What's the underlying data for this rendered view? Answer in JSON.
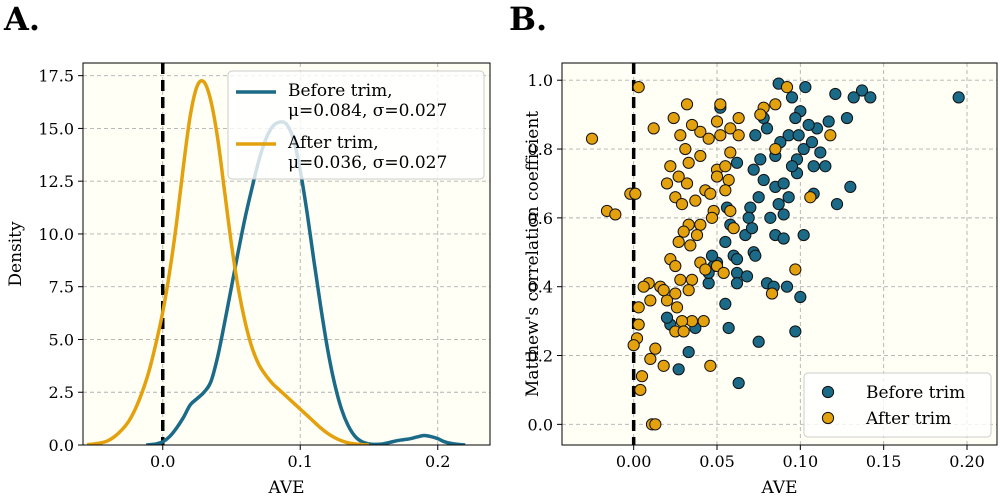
{
  "figure": {
    "background": "#ffffff",
    "plot_background": "#fffff6",
    "grid_color": "#b0b0b0",
    "colors": {
      "before": "#1b6a87",
      "after": "#e4a10e"
    }
  },
  "chart_data": [
    {
      "type": "line",
      "panel_label": "A.",
      "xlabel": "AVE",
      "ylabel": "Density",
      "xlim": [
        -0.058,
        0.238
      ],
      "ylim": [
        0,
        18.1
      ],
      "grid": true,
      "x_ticks": [
        0.0,
        0.1,
        0.2
      ],
      "x_tick_labels": [
        "0.0",
        "0.1",
        "0.2"
      ],
      "y_ticks": [
        0,
        2.5,
        5,
        7.5,
        10,
        12.5,
        15,
        17.5
      ],
      "y_tick_labels": [
        "0.0",
        "2.5",
        "5.0",
        "7.5",
        "10.0",
        "12.5",
        "15.0",
        "17.5"
      ],
      "reference_line": {
        "x": 0,
        "style": "dashed",
        "color": "#000000"
      },
      "legend": {
        "position": "top-right",
        "entries": [
          {
            "line1": "Before trim,",
            "line2": "μ=0.084, σ=0.027"
          },
          {
            "line1": "After trim,",
            "line2": "μ=0.036, σ=0.027"
          }
        ]
      },
      "series": [
        {
          "key": "before",
          "x": [
            -0.012,
            -0.005,
            0.0,
            0.005,
            0.01,
            0.015,
            0.02,
            0.025,
            0.03,
            0.035,
            0.04,
            0.045,
            0.05,
            0.055,
            0.06,
            0.065,
            0.07,
            0.075,
            0.08,
            0.085,
            0.09,
            0.095,
            0.1,
            0.105,
            0.11,
            0.115,
            0.12,
            0.125,
            0.13,
            0.135,
            0.14,
            0.145,
            0.15,
            0.155,
            0.16,
            0.165,
            0.17,
            0.175,
            0.18,
            0.185,
            0.19,
            0.195,
            0.2,
            0.205,
            0.21,
            0.215,
            0.22
          ],
          "y": [
            0.0,
            0.05,
            0.15,
            0.4,
            0.8,
            1.3,
            1.9,
            2.2,
            2.5,
            3.0,
            4.2,
            5.8,
            7.5,
            9.2,
            10.8,
            12.2,
            13.5,
            14.5,
            15.1,
            15.3,
            15.2,
            14.5,
            13.0,
            11.0,
            8.7,
            6.5,
            4.5,
            2.9,
            1.7,
            0.9,
            0.4,
            0.15,
            0.05,
            0.03,
            0.05,
            0.12,
            0.2,
            0.25,
            0.3,
            0.38,
            0.45,
            0.4,
            0.3,
            0.15,
            0.07,
            0.03,
            0.0
          ]
        },
        {
          "key": "after",
          "x": [
            -0.055,
            -0.05,
            -0.045,
            -0.04,
            -0.035,
            -0.03,
            -0.025,
            -0.02,
            -0.015,
            -0.01,
            -0.005,
            0.0,
            0.005,
            0.01,
            0.015,
            0.02,
            0.025,
            0.03,
            0.035,
            0.04,
            0.045,
            0.05,
            0.055,
            0.06,
            0.065,
            0.07,
            0.075,
            0.08,
            0.085,
            0.09,
            0.095,
            0.1,
            0.105,
            0.11,
            0.115,
            0.12,
            0.125,
            0.13,
            0.135,
            0.14,
            0.145,
            0.15
          ],
          "y": [
            0.02,
            0.05,
            0.1,
            0.2,
            0.4,
            0.7,
            1.1,
            1.7,
            2.5,
            3.5,
            4.8,
            6.3,
            8.2,
            10.5,
            13.2,
            15.6,
            17.0,
            17.2,
            16.3,
            14.5,
            12.0,
            9.5,
            7.4,
            5.8,
            4.6,
            3.8,
            3.3,
            2.9,
            2.6,
            2.3,
            2.0,
            1.7,
            1.4,
            1.1,
            0.8,
            0.55,
            0.35,
            0.2,
            0.1,
            0.05,
            0.02,
            0.0
          ]
        }
      ]
    },
    {
      "type": "scatter",
      "panel_label": "B.",
      "xlabel": "AVE",
      "ylabel": "Matthew's correlation coefficient",
      "xlim": [
        -0.043,
        0.218
      ],
      "ylim": [
        -0.06,
        1.05
      ],
      "grid": true,
      "x_ticks": [
        0.0,
        0.05,
        0.1,
        0.15,
        0.2
      ],
      "x_tick_labels": [
        "0.00",
        "0.05",
        "0.10",
        "0.15",
        "0.20"
      ],
      "y_ticks": [
        0.0,
        0.2,
        0.4,
        0.6,
        0.8,
        1.0
      ],
      "y_tick_labels": [
        "0.0",
        "0.2",
        "0.4",
        "0.6",
        "0.8",
        "1.0"
      ],
      "reference_line": {
        "x": 0,
        "style": "dashed",
        "color": "#000000"
      },
      "legend": {
        "position": "bottom-right",
        "entries": [
          {
            "label": "Before trim"
          },
          {
            "label": "After trim"
          }
        ]
      },
      "series": [
        {
          "key": "before",
          "points": [
            [
              0.045,
              0.41
            ],
            [
              0.055,
              0.53
            ],
            [
              0.087,
              0.99
            ],
            [
              0.078,
              0.89
            ],
            [
              0.103,
              0.98
            ],
            [
              0.095,
              0.95
            ],
            [
              0.121,
              0.96
            ],
            [
              0.137,
              0.97
            ],
            [
              0.132,
              0.95
            ],
            [
              0.142,
              0.95
            ],
            [
              0.195,
              0.95
            ],
            [
              0.1,
              0.91
            ],
            [
              0.128,
              0.89
            ],
            [
              0.11,
              0.86
            ],
            [
              0.117,
              0.88
            ],
            [
              0.093,
              0.84
            ],
            [
              0.102,
              0.8
            ],
            [
              0.098,
              0.77
            ],
            [
              0.085,
              0.78
            ],
            [
              0.076,
              0.77
            ],
            [
              0.072,
              0.74
            ],
            [
              0.078,
              0.71
            ],
            [
              0.085,
              0.69
            ],
            [
              0.09,
              0.7
            ],
            [
              0.098,
              0.73
            ],
            [
              0.108,
              0.75
            ],
            [
              0.115,
              0.75
            ],
            [
              0.093,
              0.66
            ],
            [
              0.087,
              0.64
            ],
            [
              0.075,
              0.66
            ],
            [
              0.07,
              0.63
            ],
            [
              0.069,
              0.6
            ],
            [
              0.082,
              0.6
            ],
            [
              0.09,
              0.61
            ],
            [
              0.108,
              0.67
            ],
            [
              0.122,
              0.64
            ],
            [
              0.13,
              0.69
            ],
            [
              0.056,
              0.63
            ],
            [
              0.058,
              0.58
            ],
            [
              0.067,
              0.55
            ],
            [
              0.071,
              0.57
            ],
            [
              0.085,
              0.55
            ],
            [
              0.09,
              0.54
            ],
            [
              0.102,
              0.55
            ],
            [
              0.06,
              0.49
            ],
            [
              0.062,
              0.48
            ],
            [
              0.05,
              0.47
            ],
            [
              0.048,
              0.46
            ],
            [
              0.045,
              0.44
            ],
            [
              0.062,
              0.44
            ],
            [
              0.068,
              0.43
            ],
            [
              0.055,
              0.35
            ],
            [
              0.072,
              0.5
            ],
            [
              0.073,
              0.49
            ],
            [
              0.08,
              0.41
            ],
            [
              0.092,
              0.4
            ],
            [
              0.1,
              0.37
            ],
            [
              0.075,
              0.24
            ],
            [
              0.063,
              0.12
            ],
            [
              0.097,
              0.27
            ],
            [
              0.033,
              0.21
            ],
            [
              0.027,
              0.16
            ],
            [
              0.037,
              0.28
            ],
            [
              0.022,
              0.29
            ],
            [
              0.02,
              0.31
            ],
            [
              0.047,
              0.49
            ],
            [
              0.062,
              0.41
            ],
            [
              0.057,
              0.28
            ],
            [
              0.084,
              0.4
            ],
            [
              0.073,
              0.84
            ],
            [
              0.08,
              0.86
            ],
            [
              0.097,
              0.89
            ],
            [
              0.105,
              0.87
            ],
            [
              0.099,
              0.84
            ],
            [
              0.112,
              0.79
            ],
            [
              0.107,
              0.82
            ],
            [
              0.052,
              0.92
            ],
            [
              0.088,
              0.82
            ],
            [
              0.062,
              0.76
            ],
            [
              0.095,
              0.75
            ]
          ]
        },
        {
          "key": "after",
          "points": [
            [
              0.003,
              0.98
            ],
            [
              0.052,
              0.93
            ],
            [
              0.032,
              0.93
            ],
            [
              0.063,
              0.89
            ],
            [
              0.078,
              0.92
            ],
            [
              0.085,
              0.93
            ],
            [
              0.092,
              0.98
            ],
            [
              0.076,
              0.9
            ],
            [
              0.05,
              0.88
            ],
            [
              0.058,
              0.86
            ],
            [
              0.063,
              0.84
            ],
            [
              0.052,
              0.84
            ],
            [
              0.04,
              0.85
            ],
            [
              0.045,
              0.83
            ],
            [
              0.024,
              0.89
            ],
            [
              0.035,
              0.87
            ],
            [
              0.012,
              0.86
            ],
            [
              0.028,
              0.84
            ],
            [
              -0.025,
              0.83
            ],
            [
              0.118,
              0.84
            ],
            [
              0.085,
              0.8
            ],
            [
              0.058,
              0.79
            ],
            [
              0.04,
              0.78
            ],
            [
              0.031,
              0.8
            ],
            [
              0.022,
              0.75
            ],
            [
              0.033,
              0.76
            ],
            [
              0.05,
              0.74
            ],
            [
              0.055,
              0.75
            ],
            [
              0.057,
              0.71
            ],
            [
              0.05,
              0.72
            ],
            [
              0.043,
              0.68
            ],
            [
              0.046,
              0.67
            ],
            [
              0.055,
              0.68
            ],
            [
              0.032,
              0.7
            ],
            [
              0.027,
              0.72
            ],
            [
              0.02,
              0.7
            ],
            [
              0.025,
              0.66
            ],
            [
              0.029,
              0.64
            ],
            [
              0.037,
              0.65
            ],
            [
              0.048,
              0.62
            ],
            [
              0.033,
              0.58
            ],
            [
              0.04,
              0.58
            ],
            [
              0.047,
              0.6
            ],
            [
              0.058,
              0.62
            ],
            [
              0.06,
              0.57
            ],
            [
              0.03,
              0.56
            ],
            [
              0.038,
              0.55
            ],
            [
              0.027,
              0.53
            ],
            [
              0.034,
              0.52
            ],
            [
              0.022,
              0.48
            ],
            [
              0.025,
              0.46
            ],
            [
              0.04,
              0.47
            ],
            [
              0.043,
              0.45
            ],
            [
              0.05,
              0.46
            ],
            [
              0.054,
              0.44
            ],
            [
              0.035,
              0.42
            ],
            [
              0.028,
              0.42
            ],
            [
              0.016,
              0.4
            ],
            [
              0.033,
              0.39
            ],
            [
              0.025,
              0.38
            ],
            [
              0.02,
              0.36
            ],
            [
              0.026,
              0.34
            ],
            [
              0.035,
              0.3
            ],
            [
              0.029,
              0.3
            ],
            [
              0.025,
              0.27
            ],
            [
              0.03,
              0.27
            ],
            [
              0.042,
              0.3
            ],
            [
              0.01,
              0.36
            ],
            [
              0.018,
              0.39
            ],
            [
              0.009,
              0.41
            ],
            [
              0.003,
              0.29
            ],
            [
              0.002,
              0.25
            ],
            [
              0.0,
              0.23
            ],
            [
              0.004,
              0.1
            ],
            [
              0.005,
              0.14
            ],
            [
              0.01,
              0.19
            ],
            [
              0.018,
              0.17
            ],
            [
              0.046,
              0.17
            ],
            [
              0.011,
              -0.0
            ],
            [
              0.013,
              0.0
            ],
            [
              -0.016,
              0.62
            ],
            [
              -0.011,
              0.61
            ],
            [
              -0.002,
              0.67
            ],
            [
              0.001,
              0.67
            ],
            [
              0.106,
              0.66
            ],
            [
              0.083,
              0.38
            ],
            [
              0.097,
              0.45
            ],
            [
              0.013,
              0.22
            ],
            [
              0.003,
              0.34
            ],
            [
              0.006,
              0.4
            ]
          ]
        }
      ]
    }
  ]
}
